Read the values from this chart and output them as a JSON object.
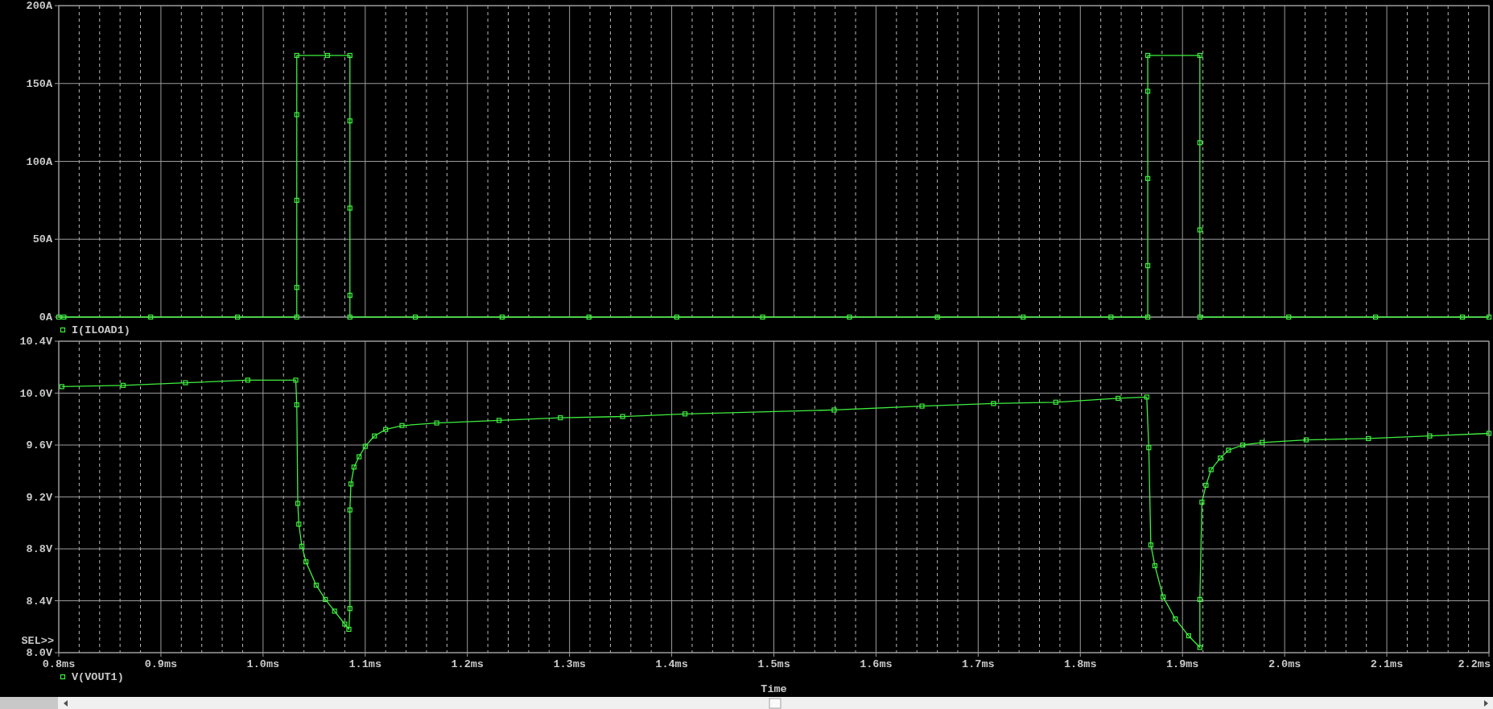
{
  "chart_data": [
    {
      "type": "line",
      "series": [
        {
          "name": "I(ILOAD1)",
          "color": "#3ff03f",
          "x": [
            0.8,
            0.805,
            0.89,
            0.975,
            1.033,
            1.033,
            1.033,
            1.033,
            1.033,
            1.063,
            1.085,
            1.085,
            1.085,
            1.085,
            1.085,
            1.149,
            1.234,
            1.319,
            1.405,
            1.489,
            1.574,
            1.66,
            1.744,
            1.83,
            1.866,
            1.866,
            1.866,
            1.866,
            1.866,
            1.917,
            1.917,
            1.917,
            1.917,
            2.004,
            2.089,
            2.174,
            2.2
          ],
          "values": [
            0,
            0,
            0,
            0,
            0,
            19,
            75,
            130,
            168,
            168,
            168,
            126,
            70,
            14,
            0,
            0,
            0,
            0,
            0,
            0,
            0,
            0,
            0,
            0,
            0,
            33,
            89,
            145,
            168,
            168,
            112,
            56,
            0,
            0,
            0,
            0,
            0
          ]
        }
      ],
      "xlim": [
        0.8,
        2.2
      ],
      "ylim": [
        0,
        200
      ],
      "yticks": [
        {
          "value": 0,
          "label": "0A"
        },
        {
          "value": 50,
          "label": "50A"
        },
        {
          "value": 100,
          "label": "100A"
        },
        {
          "value": 150,
          "label": "150A"
        },
        {
          "value": 200,
          "label": "200A"
        }
      ],
      "grid": true,
      "legend": "bottom left",
      "marker": "square",
      "tick_labels": "y"
    },
    {
      "type": "line",
      "xlabel": "Time",
      "annotations": [
        "SEL>>"
      ],
      "series": [
        {
          "name": "V(VOUT1)",
          "color": "#3ff03f",
          "x": [
            0.803,
            0.863,
            0.924,
            0.985,
            1.032,
            1.033,
            1.034,
            1.035,
            1.038,
            1.042,
            1.052,
            1.061,
            1.07,
            1.08,
            1.084,
            1.085,
            1.085,
            1.086,
            1.089,
            1.094,
            1.1,
            1.109,
            1.12,
            1.136,
            1.17,
            1.231,
            1.291,
            1.352,
            1.413,
            1.559,
            1.645,
            1.715,
            1.776,
            1.837,
            1.865,
            1.867,
            1.869,
            1.873,
            1.881,
            1.893,
            1.906,
            1.917,
            1.917,
            1.919,
            1.923,
            1.928,
            1.937,
            1.945,
            1.959,
            1.978,
            2.021,
            2.082,
            2.142,
            2.2
          ],
          "values": [
            10.05,
            10.06,
            10.08,
            10.1,
            10.1,
            9.91,
            9.15,
            8.99,
            8.82,
            8.7,
            8.52,
            8.41,
            8.32,
            8.22,
            8.18,
            8.34,
            9.1,
            9.3,
            9.43,
            9.51,
            9.59,
            9.67,
            9.72,
            9.75,
            9.77,
            9.79,
            9.81,
            9.82,
            9.84,
            9.87,
            9.9,
            9.92,
            9.93,
            9.96,
            9.97,
            9.58,
            8.83,
            8.67,
            8.43,
            8.26,
            8.13,
            8.04,
            8.41,
            9.16,
            9.29,
            9.41,
            9.5,
            9.56,
            9.6,
            9.62,
            9.64,
            9.65,
            9.67,
            9.69
          ]
        }
      ],
      "xlim": [
        0.8,
        2.2
      ],
      "xticks": [
        {
          "value": 0.8,
          "label": "0.8ms"
        },
        {
          "value": 0.82,
          "label": null
        },
        {
          "value": 0.84,
          "label": null
        },
        {
          "value": 0.86,
          "label": null
        },
        {
          "value": 0.88,
          "label": null
        },
        {
          "value": 0.9,
          "label": "0.9ms"
        },
        {
          "value": 0.92,
          "label": null
        },
        {
          "value": 0.94,
          "label": null
        },
        {
          "value": 0.96,
          "label": null
        },
        {
          "value": 0.98,
          "label": null
        },
        {
          "value": 1.0,
          "label": "1.0ms"
        },
        {
          "value": 1.02,
          "label": null
        },
        {
          "value": 1.04,
          "label": null
        },
        {
          "value": 1.06,
          "label": null
        },
        {
          "value": 1.08,
          "label": null
        },
        {
          "value": 1.1,
          "label": "1.1ms"
        },
        {
          "value": 1.12,
          "label": null
        },
        {
          "value": 1.14,
          "label": null
        },
        {
          "value": 1.16,
          "label": null
        },
        {
          "value": 1.18,
          "label": null
        },
        {
          "value": 1.2,
          "label": "1.2ms"
        },
        {
          "value": 1.22,
          "label": null
        },
        {
          "value": 1.24,
          "label": null
        },
        {
          "value": 1.26,
          "label": null
        },
        {
          "value": 1.28,
          "label": null
        },
        {
          "value": 1.3,
          "label": "1.3ms"
        },
        {
          "value": 1.32,
          "label": null
        },
        {
          "value": 1.34,
          "label": null
        },
        {
          "value": 1.36,
          "label": null
        },
        {
          "value": 1.38,
          "label": null
        },
        {
          "value": 1.4,
          "label": "1.4ms"
        },
        {
          "value": 1.42,
          "label": null
        },
        {
          "value": 1.44,
          "label": null
        },
        {
          "value": 1.46,
          "label": null
        },
        {
          "value": 1.48,
          "label": null
        },
        {
          "value": 1.5,
          "label": "1.5ms"
        },
        {
          "value": 1.52,
          "label": null
        },
        {
          "value": 1.54,
          "label": null
        },
        {
          "value": 1.56,
          "label": null
        },
        {
          "value": 1.58,
          "label": null
        },
        {
          "value": 1.6,
          "label": "1.6ms"
        },
        {
          "value": 1.62,
          "label": null
        },
        {
          "value": 1.64,
          "label": null
        },
        {
          "value": 1.66,
          "label": null
        },
        {
          "value": 1.68,
          "label": null
        },
        {
          "value": 1.7,
          "label": "1.7ms"
        },
        {
          "value": 1.72,
          "label": null
        },
        {
          "value": 1.74,
          "label": null
        },
        {
          "value": 1.76,
          "label": null
        },
        {
          "value": 1.78,
          "label": null
        },
        {
          "value": 1.8,
          "label": "1.8ms"
        },
        {
          "value": 1.82,
          "label": null
        },
        {
          "value": 1.84,
          "label": null
        },
        {
          "value": 1.86,
          "label": null
        },
        {
          "value": 1.88,
          "label": null
        },
        {
          "value": 1.9,
          "label": "1.9ms"
        },
        {
          "value": 1.92,
          "label": null
        },
        {
          "value": 1.94,
          "label": null
        },
        {
          "value": 1.96,
          "label": null
        },
        {
          "value": 1.98,
          "label": null
        },
        {
          "value": 2.0,
          "label": "2.0ms"
        },
        {
          "value": 2.02,
          "label": null
        },
        {
          "value": 2.04,
          "label": null
        },
        {
          "value": 2.06,
          "label": null
        },
        {
          "value": 2.08,
          "label": null
        },
        {
          "value": 2.1,
          "label": "2.1ms"
        },
        {
          "value": 2.12,
          "label": null
        },
        {
          "value": 2.14,
          "label": null
        },
        {
          "value": 2.16,
          "label": null
        },
        {
          "value": 2.18,
          "label": null
        },
        {
          "value": 2.2,
          "label": "2.2ms"
        }
      ],
      "ylim": [
        8.0,
        10.4
      ],
      "yticks": [
        {
          "value": 8.0,
          "label": "8.0V"
        },
        {
          "value": 8.4,
          "label": "8.4V"
        },
        {
          "value": 8.8,
          "label": "8.8V"
        },
        {
          "value": 9.2,
          "label": "9.2V"
        },
        {
          "value": 9.6,
          "label": "9.6V"
        },
        {
          "value": 10.0,
          "label": "10.0V"
        },
        {
          "value": 10.4,
          "label": "10.4V"
        }
      ],
      "grid": true,
      "legend": "bottom left",
      "marker": "square"
    }
  ]
}
